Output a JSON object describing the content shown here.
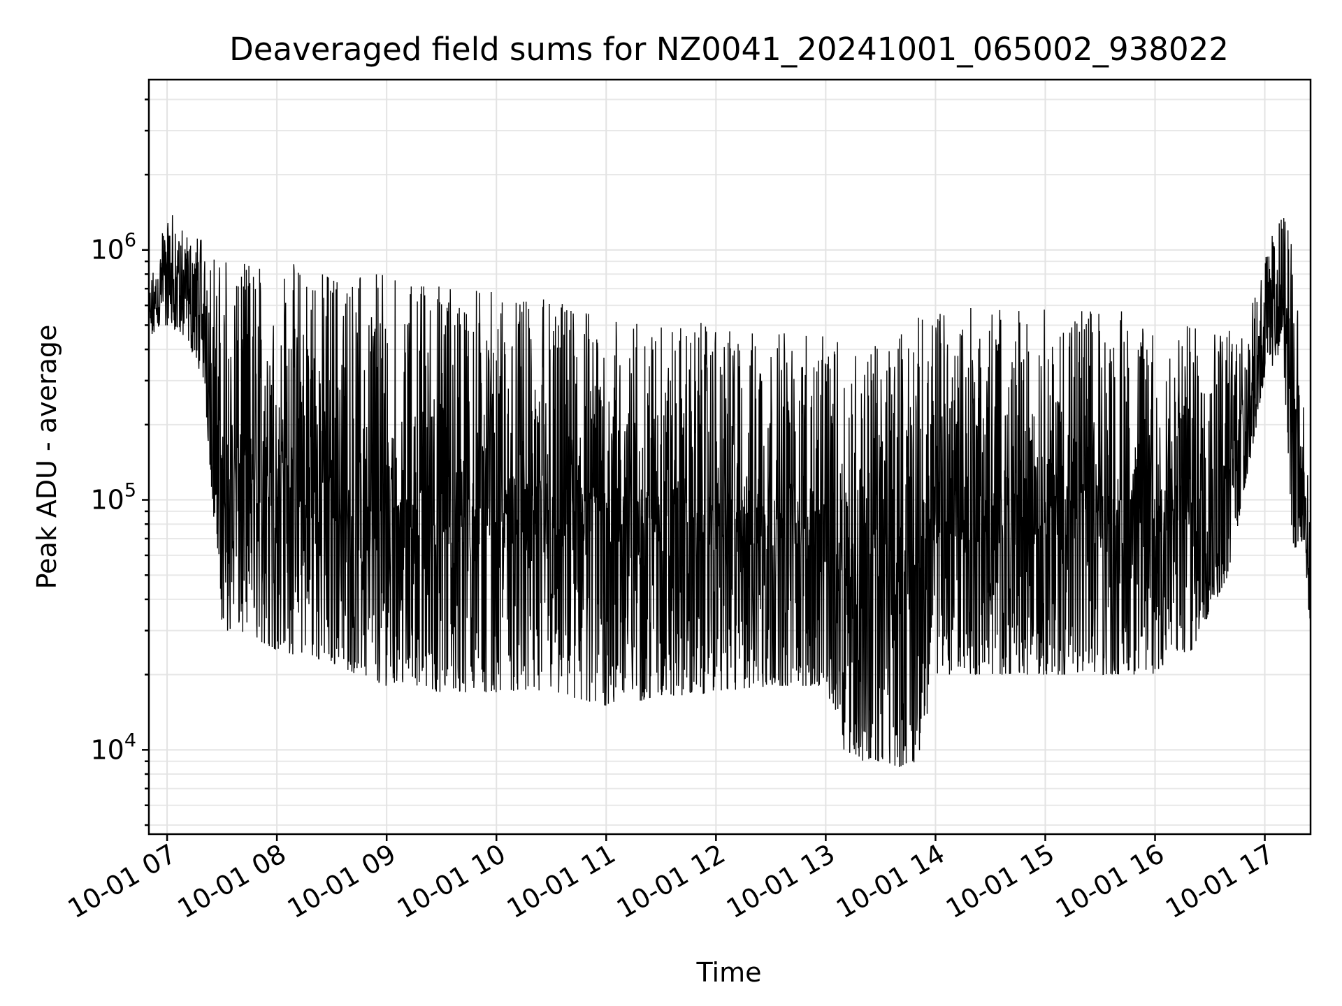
{
  "chart_data": {
    "type": "line",
    "title": "Deaveraged field sums for NZ0041_20241001_065002_938022",
    "xlabel": "Time",
    "ylabel": "Peak ADU - average",
    "xscale": "time",
    "yscale": "log",
    "xlim": [
      "2024-10-01 06:50:02",
      "2024-10-01 17:25:00"
    ],
    "ylim": [
      4600,
      4800000
    ],
    "grid": true,
    "legend": "none",
    "line_color": "#000000",
    "x_tick_labels": [
      "10-01 07",
      "10-01 08",
      "10-01 09",
      "10-01 10",
      "10-01 11",
      "10-01 12",
      "10-01 13",
      "10-01 14",
      "10-01 15",
      "10-01 16",
      "10-01 17"
    ],
    "x_tick_values": [
      "2024-10-01 07:00",
      "2024-10-01 08:00",
      "2024-10-01 09:00",
      "2024-10-01 10:00",
      "2024-10-01 11:00",
      "2024-10-01 12:00",
      "2024-10-01 13:00",
      "2024-10-01 14:00",
      "2024-10-01 15:00",
      "2024-10-01 16:00",
      "2024-10-01 17:00"
    ],
    "y_ticks": [
      {
        "value": 10000,
        "base": "10",
        "exp": "4"
      },
      {
        "value": 100000,
        "base": "10",
        "exp": "5"
      },
      {
        "value": 1000000,
        "base": "10",
        "exp": "6"
      }
    ],
    "series": [
      {
        "envelope": {
          "x": [
            "06:50",
            "07:00",
            "07:10",
            "07:20",
            "07:30",
            "07:40",
            "08:00",
            "08:30",
            "09:00",
            "09:30",
            "10:00",
            "10:30",
            "11:00",
            "11:30",
            "12:00",
            "12:30",
            "13:00",
            "13:10",
            "13:20",
            "13:30",
            "13:40",
            "13:50",
            "14:00",
            "14:30",
            "15:00",
            "15:30",
            "16:00",
            "16:20",
            "16:40",
            "16:50",
            "17:00",
            "17:10",
            "17:15",
            "17:20",
            "17:25"
          ],
          "upper": [
            700000,
            1500000,
            1200000,
            1100000,
            1000000,
            900000,
            900000,
            850000,
            800000,
            750000,
            700000,
            650000,
            600000,
            550000,
            500000,
            480000,
            450000,
            420000,
            400000,
            450000,
            500000,
            550000,
            600000,
            600000,
            600000,
            600000,
            550000,
            500000,
            500000,
            600000,
            1000000,
            1500000,
            1200000,
            400000,
            100000
          ],
          "lower": [
            450000,
            500000,
            450000,
            300000,
            30000,
            30000,
            25000,
            22000,
            18000,
            17000,
            17000,
            17000,
            15000,
            16000,
            17000,
            18000,
            18000,
            10000,
            9000,
            9000,
            8500,
            9000,
            20000,
            20000,
            20000,
            20000,
            20000,
            25000,
            50000,
            120000,
            300000,
            400000,
            60000,
            70000,
            30000
          ]
        }
      }
    ]
  }
}
